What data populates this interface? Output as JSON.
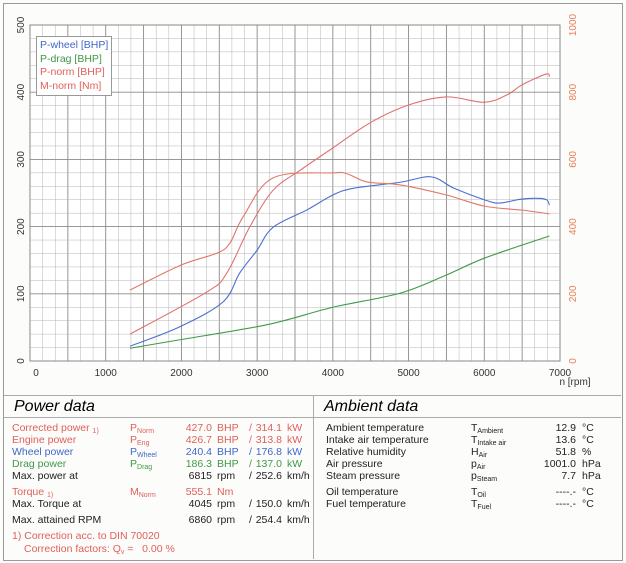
{
  "colors": {
    "wheel": "#4a6fd0",
    "drag": "#3f9a48",
    "norm": "#e07070",
    "mnorm": "#e07868",
    "right_axis": "#e8805a",
    "grid": "#b5b5b5"
  },
  "chart_data": {
    "type": "line",
    "xlabel": "n [rpm]",
    "xlim": [
      0,
      7000
    ],
    "ylim_left": [
      0,
      500
    ],
    "ylim_right": [
      0,
      1000
    ],
    "xticks": [
      "0",
      "1000",
      "2000",
      "3000",
      "4000",
      "5000",
      "6000",
      "7000"
    ],
    "yticks_left": [
      "0",
      "100",
      "200",
      "300",
      "400",
      "500"
    ],
    "yticks_right": [
      "0",
      "200",
      "400",
      "600",
      "800",
      "1000"
    ],
    "grid": true,
    "legend_placement": "top-left",
    "series": [
      {
        "name": "P-wheel [BHP]",
        "axis": "left",
        "color": "#4a6fd0",
        "x": [
          1320,
          1980,
          2550,
          2770,
          3000,
          3210,
          3660,
          4000,
          4270,
          4890,
          5300,
          5600,
          6000,
          6200,
          6500,
          6800,
          6860
        ],
        "y": [
          22,
          51,
          88,
          131,
          165,
          199,
          225,
          247,
          257,
          266,
          274,
          257,
          240,
          235,
          241,
          241,
          232
        ]
      },
      {
        "name": "P-drag [BHP]",
        "axis": "left",
        "color": "#3f9a48",
        "x": [
          1320,
          2000,
          3130,
          4000,
          4890,
          5500,
          6000,
          6860
        ],
        "y": [
          19,
          32,
          54,
          80,
          101,
          128,
          153,
          186
        ]
      },
      {
        "name": "P-norm [BHP]",
        "axis": "left",
        "color": "#e07070",
        "x": [
          1320,
          2340,
          2600,
          2900,
          3210,
          3570,
          3960,
          4500,
          5000,
          5500,
          6000,
          6300,
          6500,
          6815,
          6860
        ],
        "y": [
          40,
          103,
          131,
          199,
          254,
          284,
          314,
          355,
          381,
          393,
          385,
          396,
          411,
          427,
          423
        ]
      },
      {
        "name": "M-norm [Nm]",
        "axis": "right",
        "color": "#e07868",
        "x": [
          1320,
          2000,
          2470,
          2640,
          2815,
          3210,
          4000,
          4190,
          4450,
          4890,
          5500,
          6000,
          6500,
          6860
        ],
        "y": [
          211,
          286,
          321,
          351,
          429,
          545,
          560,
          557,
          533,
          524,
          494,
          461,
          449,
          438
        ]
      }
    ]
  },
  "power": {
    "title": "Power data",
    "rows": [
      {
        "label": "Corrected power",
        "note": "1)",
        "sym": "P",
        "sub": "Norm",
        "v1": "427.0",
        "u1": "BHP",
        "sep": "/",
        "v2": "314.1",
        "u2": "kW",
        "cls": "red"
      },
      {
        "label": "Engine power",
        "note": "",
        "sym": "P",
        "sub": "Eng",
        "v1": "426.7",
        "u1": "BHP",
        "sep": "/",
        "v2": "313.8",
        "u2": "kW",
        "cls": "red"
      },
      {
        "label": "Wheel power",
        "note": "",
        "sym": "P",
        "sub": "Wheel",
        "v1": "240.4",
        "u1": "BHP",
        "sep": "/",
        "v2": "176.8",
        "u2": "kW",
        "cls": "blue"
      },
      {
        "label": "Drag power",
        "note": "",
        "sym": "P",
        "sub": "Drag",
        "v1": "186.3",
        "u1": "BHP",
        "sep": "/",
        "v2": "137.0",
        "u2": "kW",
        "cls": "green"
      },
      {
        "label": "Max. power at",
        "note": "",
        "sym": "",
        "sub": "",
        "v1": "6815",
        "u1": "rpm",
        "sep": "/",
        "v2": "252.6",
        "u2": "km/h",
        "cls": "blk"
      },
      {
        "label": "Torque",
        "note": "1)",
        "sym": "M",
        "sub": "Norm",
        "v1": "555.1",
        "u1": "Nm",
        "sep": "",
        "v2": "",
        "u2": "",
        "cls": "red"
      },
      {
        "label": "Max. Torque at",
        "note": "",
        "sym": "",
        "sub": "",
        "v1": "4045",
        "u1": "rpm",
        "sep": "/",
        "v2": "150.0",
        "u2": "km/h",
        "cls": "blk"
      },
      {
        "label": "Max. attained RPM",
        "note": "",
        "sym": "",
        "sub": "",
        "v1": "6860",
        "u1": "rpm",
        "sep": "/",
        "v2": "254.4",
        "u2": "km/h",
        "cls": "blk"
      }
    ],
    "footnote1": "1) Correction acc. to DIN 70020",
    "footnote2": "Correction factors: Q",
    "footnote2_sub": "v",
    "footnote2_val": "=   0.00 %"
  },
  "ambient": {
    "title": "Ambient data",
    "rows": [
      {
        "label": "Ambient temperature",
        "sym": "T",
        "sub": "Ambient",
        "v": "12.9",
        "u": "°C"
      },
      {
        "label": "Intake air temperature",
        "sym": "T",
        "sub": "Intake air",
        "v": "13.6",
        "u": "°C"
      },
      {
        "label": "Relative humidity",
        "sym": "H",
        "sub": "Air",
        "v": "51.8",
        "u": "%"
      },
      {
        "label": "Air pressure",
        "sym": "p",
        "sub": "Air",
        "v": "1001.0",
        "u": "hPa"
      },
      {
        "label": "Steam pressure",
        "sym": "p",
        "sub": "Steam",
        "v": "7.7",
        "u": "hPa"
      },
      {
        "label": "Oil temperature",
        "sym": "T",
        "sub": "Oil",
        "v": "----.-",
        "u": "°C"
      },
      {
        "label": "Fuel temperature",
        "sym": "T",
        "sub": "Fuel",
        "v": "----.-",
        "u": "°C"
      }
    ]
  }
}
